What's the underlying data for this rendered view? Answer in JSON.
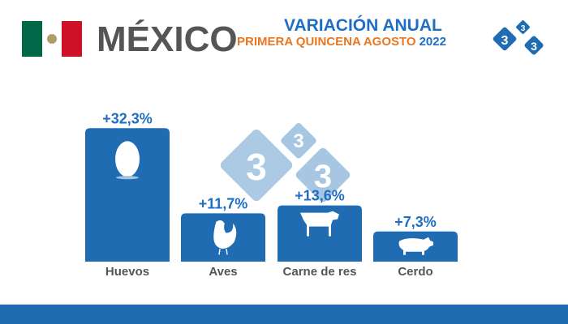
{
  "header": {
    "country": "MÉXICO",
    "title": "VARIACIÓN ANUAL",
    "subtitle": "PRIMERA QUINCENA AGOSTO",
    "year": "2022",
    "flag_colors": [
      "#006847",
      "#ffffff",
      "#ce1126"
    ],
    "logo_text": "3"
  },
  "colors": {
    "bar": "#1f6cb2",
    "label": "#1f6ec4",
    "category": "#555555",
    "watermark": "#a3c4e0"
  },
  "chart_data": {
    "type": "bar",
    "title": "VARIACIÓN ANUAL",
    "categories": [
      "Huevos",
      "Aves",
      "Carne de res",
      "Cerdo"
    ],
    "values": [
      32.3,
      11.7,
      13.6,
      7.3
    ],
    "data_labels": [
      "+32,3%",
      "+11,7%",
      "+13,6%",
      "+7,3%"
    ],
    "icons": [
      "egg-icon",
      "chicken-icon",
      "cow-icon",
      "pig-icon"
    ],
    "xlabel": "",
    "ylabel": "",
    "ylim": [
      0,
      35
    ],
    "grid": false,
    "unit": "%"
  }
}
